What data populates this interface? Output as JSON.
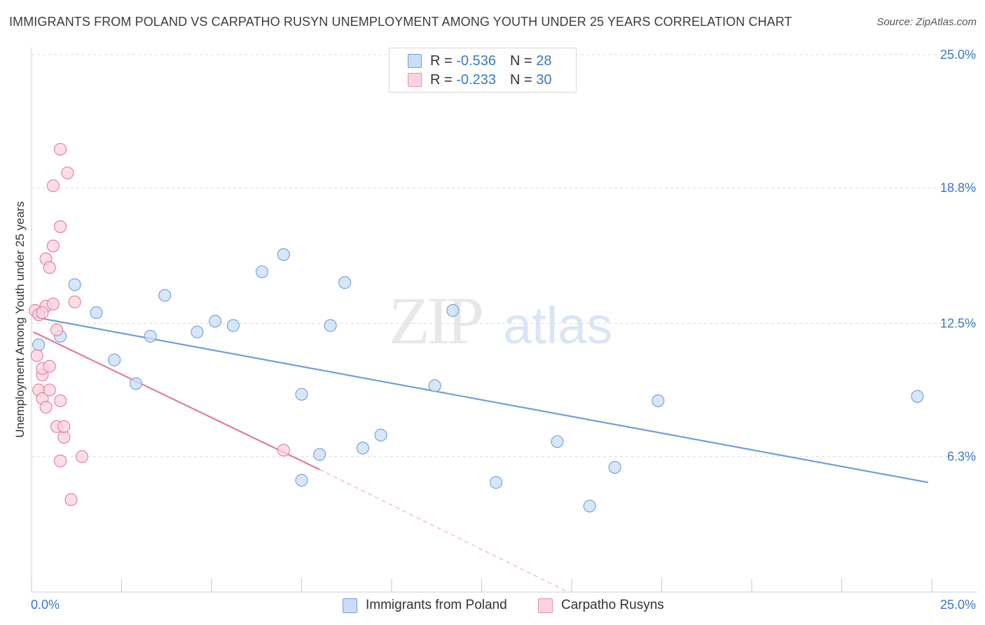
{
  "title": "IMMIGRANTS FROM POLAND VS CARPATHO RUSYN UNEMPLOYMENT AMONG YOUTH UNDER 25 YEARS CORRELATION CHART",
  "source": "Source: ZipAtlas.com",
  "watermark": {
    "zip": "ZIP",
    "atlas": "atlas"
  },
  "legend": {
    "r_label": "R =",
    "n_label": "N =",
    "rows": [
      {
        "r": "-0.536",
        "n": "28",
        "color": "#a8c8f0",
        "border": "#6f9fd8"
      },
      {
        "r": "-0.233",
        "n": "30",
        "color": "#f7c0d0",
        "border": "#e591aa"
      }
    ]
  },
  "bottom_legend": [
    {
      "label": "Immigrants from Poland",
      "color": "#c9ddf6",
      "border": "#6f9fd8"
    },
    {
      "label": "Carpatho Rusyns",
      "color": "#fbd3de",
      "border": "#e591aa"
    }
  ],
  "chart_data": {
    "type": "scatter",
    "xlabel": "",
    "ylabel": "Unemployment Among Youth under 25 years",
    "xlim": [
      0,
      25
    ],
    "ylim": [
      0,
      25
    ],
    "x_tick_labels": [
      "0.0%",
      "25.0%"
    ],
    "y_ticks": [
      6.3,
      12.5,
      18.8,
      25.0
    ],
    "y_tick_labels": [
      "6.3%",
      "12.5%",
      "18.8%",
      "25.0%"
    ],
    "grid": "horizontal dashed",
    "series": [
      {
        "name": "Immigrants from Poland",
        "color": "#6f9fd8",
        "fill": "#c9ddf6",
        "trend": {
          "x": [
            0.05,
            24.9
          ],
          "y": [
            12.8,
            5.1
          ]
        },
        "points": [
          [
            0.2,
            11.5
          ],
          [
            1.2,
            14.3
          ],
          [
            1.8,
            13.0
          ],
          [
            2.3,
            10.8
          ],
          [
            2.9,
            9.7
          ],
          [
            3.3,
            11.9
          ],
          [
            3.7,
            13.8
          ],
          [
            4.6,
            12.1
          ],
          [
            5.1,
            12.6
          ],
          [
            5.6,
            12.4
          ],
          [
            6.4,
            14.9
          ],
          [
            7.0,
            15.7
          ],
          [
            7.5,
            9.2
          ],
          [
            7.5,
            5.2
          ],
          [
            8.0,
            6.4
          ],
          [
            8.3,
            12.4
          ],
          [
            8.7,
            14.4
          ],
          [
            9.2,
            6.7
          ],
          [
            9.7,
            7.3
          ],
          [
            11.2,
            9.6
          ],
          [
            11.7,
            13.1
          ],
          [
            12.9,
            5.1
          ],
          [
            14.6,
            7.0
          ],
          [
            15.5,
            4.0
          ],
          [
            16.2,
            5.8
          ],
          [
            17.4,
            8.9
          ],
          [
            24.6,
            9.1
          ],
          [
            0.8,
            11.9
          ]
        ]
      },
      {
        "name": "Carpatho Rusyns",
        "color": "#e57a9c",
        "fill": "#fbd3de",
        "trend": {
          "x": [
            0.05,
            8.0
          ],
          "y": [
            12.1,
            5.7
          ]
        },
        "trend_extension": {
          "x": [
            8.0,
            14.9
          ],
          "y": [
            5.7,
            0.0
          ]
        },
        "points": [
          [
            0.1,
            13.1
          ],
          [
            0.2,
            12.9
          ],
          [
            0.15,
            11.0
          ],
          [
            0.2,
            9.4
          ],
          [
            0.3,
            10.1
          ],
          [
            0.3,
            10.4
          ],
          [
            0.3,
            9.0
          ],
          [
            0.4,
            8.6
          ],
          [
            0.4,
            13.3
          ],
          [
            0.5,
            9.4
          ],
          [
            0.4,
            15.5
          ],
          [
            0.5,
            15.1
          ],
          [
            0.6,
            18.9
          ],
          [
            0.6,
            13.4
          ],
          [
            0.6,
            16.1
          ],
          [
            0.7,
            7.7
          ],
          [
            0.7,
            12.2
          ],
          [
            0.8,
            8.9
          ],
          [
            0.8,
            6.1
          ],
          [
            0.8,
            17.0
          ],
          [
            0.8,
            20.6
          ],
          [
            0.9,
            7.2
          ],
          [
            0.9,
            7.7
          ],
          [
            1.0,
            19.5
          ],
          [
            1.1,
            4.3
          ],
          [
            1.2,
            13.5
          ],
          [
            1.4,
            6.3
          ],
          [
            7.0,
            6.6
          ],
          [
            0.3,
            13.0
          ],
          [
            0.5,
            10.5
          ]
        ]
      }
    ]
  }
}
